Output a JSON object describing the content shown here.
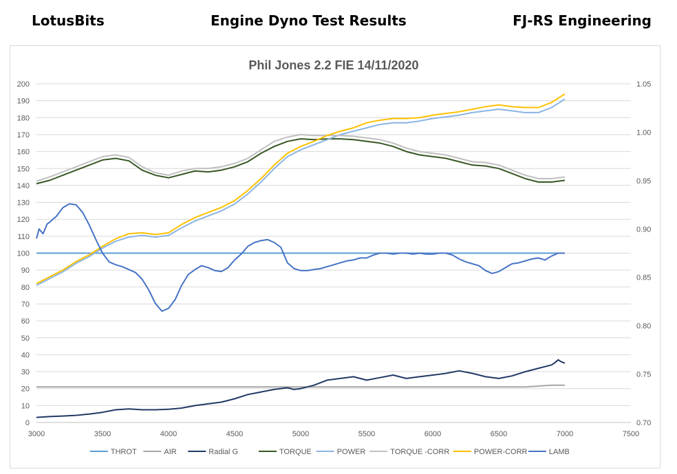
{
  "header": {
    "left": "LotusBits",
    "center": "Engine Dyno Test Results",
    "right": "FJ-RS Engineering"
  },
  "chart_data": {
    "type": "line",
    "title": "Phil Jones 2.2 FIE 14/11/2020",
    "xlabel": "",
    "ylabel": "",
    "xlim": [
      3000,
      7500
    ],
    "x_ticks": [
      3000,
      3500,
      4000,
      4500,
      5000,
      5500,
      6000,
      6500,
      7000,
      7500
    ],
    "ylim": [
      0,
      200
    ],
    "y_ticks": [
      0,
      10,
      20,
      30,
      40,
      50,
      60,
      70,
      80,
      90,
      100,
      110,
      120,
      130,
      140,
      150,
      160,
      170,
      180,
      190,
      200
    ],
    "y2lim": [
      0.7,
      1.05
    ],
    "y2_ticks": [
      "0.70",
      "0.75",
      "0.80",
      "0.85",
      "0.90",
      "0.95",
      "1.00",
      "1.05"
    ],
    "grid": "horizontal",
    "legend_position": "bottom",
    "series": [
      {
        "name": "THROT",
        "color": "#5b9bd5",
        "axis": "left",
        "x": [
          3000,
          7000
        ],
        "values": [
          100,
          100
        ]
      },
      {
        "name": "AIR",
        "color": "#a5a5a5",
        "axis": "left",
        "x": [
          3000,
          6700,
          6800,
          6900,
          7000
        ],
        "values": [
          21,
          21,
          21.5,
          22,
          22
        ]
      },
      {
        "name": "Radial  G",
        "color": "#203864",
        "axis": "left",
        "x": [
          3000,
          3100,
          3200,
          3300,
          3400,
          3500,
          3600,
          3700,
          3800,
          3900,
          4000,
          4100,
          4200,
          4300,
          4400,
          4500,
          4600,
          4700,
          4800,
          4900,
          4950,
          5000,
          5100,
          5200,
          5300,
          5400,
          5500,
          5600,
          5700,
          5800,
          5900,
          6000,
          6100,
          6200,
          6300,
          6400,
          6500,
          6600,
          6700,
          6800,
          6850,
          6900,
          6920,
          6950,
          6970,
          7000
        ],
        "values": [
          3,
          3.5,
          3.8,
          4.2,
          5.0,
          6.0,
          7.5,
          8.0,
          7.5,
          7.5,
          7.8,
          8.5,
          10,
          11,
          12,
          14,
          16.5,
          18,
          19.5,
          20.5,
          19.5,
          20,
          22,
          25,
          26,
          27,
          25,
          26.5,
          28,
          26,
          27,
          28,
          29,
          30.5,
          29,
          27,
          26,
          27.5,
          30,
          32,
          33,
          34,
          35,
          37,
          36,
          35
        ]
      },
      {
        "name": "TORQUE",
        "color": "#375623",
        "axis": "left",
        "x": [
          3000,
          3100,
          3200,
          3300,
          3400,
          3500,
          3600,
          3700,
          3800,
          3900,
          4000,
          4100,
          4200,
          4300,
          4400,
          4500,
          4600,
          4700,
          4800,
          4900,
          5000,
          5100,
          5200,
          5300,
          5400,
          5500,
          5600,
          5700,
          5800,
          5900,
          6000,
          6100,
          6200,
          6300,
          6400,
          6500,
          6600,
          6700,
          6800,
          6900,
          7000
        ],
        "values": [
          141,
          143,
          146,
          149,
          152,
          155,
          156,
          154.5,
          149,
          146,
          144.5,
          146.5,
          148.5,
          148,
          149,
          151,
          154,
          159,
          163,
          166,
          167.5,
          167,
          167.5,
          167.5,
          167,
          166,
          165,
          163,
          160,
          158,
          157,
          156,
          154,
          152,
          151.5,
          150,
          147,
          144,
          142,
          142,
          143
        ]
      },
      {
        "name": "POWER",
        "color": "#8ab4e2",
        "axis": "left",
        "x": [
          3000,
          3100,
          3200,
          3300,
          3400,
          3500,
          3600,
          3700,
          3800,
          3900,
          4000,
          4100,
          4200,
          4300,
          4400,
          4500,
          4600,
          4700,
          4800,
          4900,
          5000,
          5100,
          5200,
          5300,
          5400,
          5500,
          5600,
          5700,
          5800,
          5900,
          6000,
          6100,
          6200,
          6300,
          6400,
          6500,
          6600,
          6700,
          6800,
          6900,
          7000
        ],
        "values": [
          81,
          85,
          89,
          94,
          98,
          103,
          107,
          109.5,
          110.5,
          109.5,
          110.5,
          115,
          119,
          122,
          125,
          129,
          135,
          142,
          150,
          157,
          161,
          164,
          167,
          170,
          172,
          174,
          176,
          177,
          177,
          178,
          179.5,
          180.5,
          181.5,
          183,
          184,
          185,
          184,
          183,
          183,
          186,
          191
        ]
      },
      {
        "name": "TORQUE -CORR",
        "color": "#bfbfbf",
        "axis": "left",
        "x": [
          3000,
          3100,
          3200,
          3300,
          3400,
          3500,
          3600,
          3700,
          3800,
          3900,
          4000,
          4100,
          4200,
          4300,
          4400,
          4500,
          4600,
          4700,
          4800,
          4900,
          5000,
          5100,
          5200,
          5300,
          5400,
          5500,
          5600,
          5700,
          5800,
          5900,
          6000,
          6100,
          6200,
          6300,
          6400,
          6500,
          6600,
          6700,
          6800,
          6900,
          7000
        ],
        "values": [
          142.5,
          145,
          148,
          151,
          154,
          157,
          158,
          156.5,
          151,
          147.5,
          146,
          148.5,
          150,
          150,
          151,
          153,
          156,
          161,
          166,
          168.5,
          170,
          169.5,
          169.5,
          169.5,
          169,
          168,
          167,
          165,
          162,
          160,
          159,
          158,
          156,
          154,
          153.5,
          152,
          149,
          146,
          144,
          144,
          145
        ]
      },
      {
        "name": "POWER-CORR",
        "color": "#ffc000",
        "axis": "left",
        "x": [
          3000,
          3100,
          3200,
          3300,
          3400,
          3500,
          3600,
          3700,
          3800,
          3900,
          4000,
          4100,
          4200,
          4300,
          4400,
          4500,
          4600,
          4700,
          4800,
          4900,
          5000,
          5100,
          5200,
          5300,
          5400,
          5500,
          5600,
          5700,
          5800,
          5900,
          6000,
          6100,
          6200,
          6300,
          6400,
          6500,
          6600,
          6700,
          6800,
          6900,
          7000
        ],
        "values": [
          82,
          86,
          90,
          95,
          99,
          104,
          108.5,
          111.5,
          112,
          111,
          112,
          117,
          121,
          124,
          127,
          131,
          137,
          144,
          152,
          159,
          163,
          166,
          169.5,
          172,
          174,
          177,
          178.5,
          179.5,
          179.5,
          180,
          181.5,
          182.5,
          183.5,
          185,
          186.5,
          187.5,
          186.5,
          186,
          186,
          189,
          194
        ]
      },
      {
        "name": "LAMB",
        "color": "#4472c4",
        "axis": "right",
        "x": [
          3000,
          3020,
          3050,
          3080,
          3100,
          3150,
          3200,
          3250,
          3300,
          3350,
          3400,
          3450,
          3500,
          3550,
          3600,
          3650,
          3700,
          3750,
          3800,
          3850,
          3900,
          3950,
          4000,
          4050,
          4100,
          4150,
          4200,
          4250,
          4300,
          4350,
          4400,
          4450,
          4500,
          4550,
          4600,
          4650,
          4700,
          4750,
          4800,
          4850,
          4900,
          4950,
          5000,
          5050,
          5100,
          5150,
          5200,
          5250,
          5300,
          5350,
          5400,
          5450,
          5500,
          5550,
          5600,
          5650,
          5700,
          5750,
          5800,
          5850,
          5900,
          5950,
          6000,
          6050,
          6100,
          6150,
          6200,
          6250,
          6300,
          6350,
          6400,
          6450,
          6500,
          6550,
          6600,
          6650,
          6700,
          6750,
          6800,
          6850,
          6900,
          6950,
          7000
        ],
        "values": [
          0.89,
          0.9,
          0.895,
          0.905,
          0.907,
          0.913,
          0.922,
          0.926,
          0.925,
          0.917,
          0.904,
          0.889,
          0.875,
          0.866,
          0.863,
          0.861,
          0.858,
          0.855,
          0.848,
          0.837,
          0.823,
          0.815,
          0.818,
          0.827,
          0.842,
          0.853,
          0.858,
          0.862,
          0.86,
          0.857,
          0.856,
          0.86,
          0.868,
          0.874,
          0.882,
          0.886,
          0.888,
          0.889,
          0.886,
          0.881,
          0.865,
          0.859,
          0.857,
          0.857,
          0.858,
          0.859,
          0.861,
          0.863,
          0.865,
          0.867,
          0.868,
          0.87,
          0.87,
          0.873,
          0.875,
          0.875,
          0.874,
          0.875,
          0.875,
          0.874,
          0.875,
          0.874,
          0.874,
          0.875,
          0.875,
          0.873,
          0.869,
          0.866,
          0.864,
          0.862,
          0.857,
          0.854,
          0.856,
          0.86,
          0.864,
          0.865,
          0.867,
          0.869,
          0.87,
          0.868,
          0.872,
          0.875,
          0.875
        ]
      }
    ]
  }
}
